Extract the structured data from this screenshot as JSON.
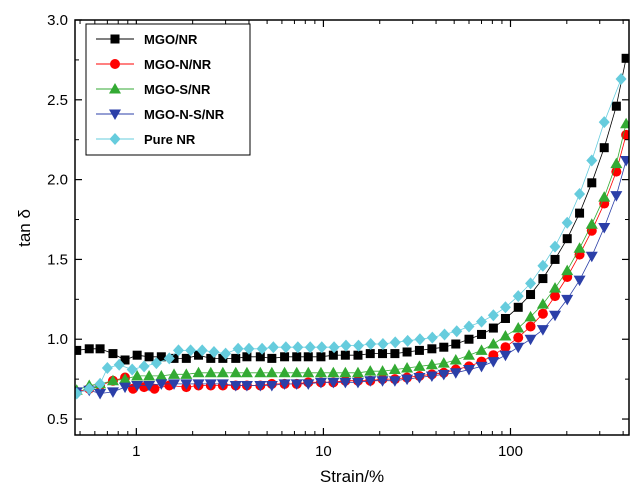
{
  "chart_data": {
    "type": "scatter",
    "xlabel": "Strain/%",
    "ylabel": "tan δ",
    "xscale": "log",
    "xlim": [
      0.47,
      430
    ],
    "ylim": [
      0.4,
      3.0
    ],
    "xticks": [
      1,
      10,
      100
    ],
    "yticks": [
      0.5,
      1.0,
      1.5,
      2.0,
      2.5,
      3.0
    ],
    "legend_position": "top-left",
    "grid": false,
    "series": [
      {
        "name": "MGO/NR",
        "color": "#000000",
        "marker": "square",
        "points": [
          [
            0.48,
            0.93
          ],
          [
            0.56,
            0.94
          ],
          [
            0.64,
            0.94
          ],
          [
            0.75,
            0.91
          ],
          [
            0.87,
            0.87
          ],
          [
            1.01,
            0.9
          ],
          [
            1.17,
            0.89
          ],
          [
            1.36,
            0.89
          ],
          [
            1.59,
            0.88
          ],
          [
            1.85,
            0.88
          ],
          [
            2.15,
            0.9
          ],
          [
            2.5,
            0.88
          ],
          [
            2.9,
            0.88
          ],
          [
            3.4,
            0.88
          ],
          [
            3.9,
            0.89
          ],
          [
            4.6,
            0.89
          ],
          [
            5.3,
            0.88
          ],
          [
            6.2,
            0.89
          ],
          [
            7.2,
            0.89
          ],
          [
            8.3,
            0.89
          ],
          [
            9.7,
            0.89
          ],
          [
            11.3,
            0.9
          ],
          [
            13.1,
            0.9
          ],
          [
            15.3,
            0.9
          ],
          [
            17.8,
            0.91
          ],
          [
            20.7,
            0.91
          ],
          [
            24.1,
            0.91
          ],
          [
            28,
            0.92
          ],
          [
            32.6,
            0.93
          ],
          [
            38,
            0.94
          ],
          [
            44,
            0.95
          ],
          [
            51,
            0.97
          ],
          [
            60,
            1.0
          ],
          [
            70,
            1.03
          ],
          [
            81,
            1.07
          ],
          [
            94,
            1.13
          ],
          [
            110,
            1.2
          ],
          [
            128,
            1.28
          ],
          [
            149,
            1.38
          ],
          [
            173,
            1.5
          ],
          [
            201,
            1.63
          ],
          [
            234,
            1.79
          ],
          [
            272,
            1.98
          ],
          [
            317,
            2.2
          ],
          [
            368,
            2.46
          ],
          [
            415,
            2.76
          ]
        ]
      },
      {
        "name": "MGO-N/NR",
        "color": "#ff0000",
        "marker": "circle",
        "points": [
          [
            0.48,
            0.67
          ],
          [
            0.56,
            0.69
          ],
          [
            0.64,
            0.71
          ],
          [
            0.75,
            0.74
          ],
          [
            0.87,
            0.76
          ],
          [
            0.96,
            0.69
          ],
          [
            1.1,
            0.7
          ],
          [
            1.25,
            0.69
          ],
          [
            1.5,
            0.71
          ],
          [
            1.85,
            0.7
          ],
          [
            2.15,
            0.71
          ],
          [
            2.5,
            0.71
          ],
          [
            2.9,
            0.71
          ],
          [
            3.4,
            0.71
          ],
          [
            3.9,
            0.71
          ],
          [
            4.6,
            0.71
          ],
          [
            5.3,
            0.72
          ],
          [
            6.2,
            0.72
          ],
          [
            7.2,
            0.72
          ],
          [
            8.3,
            0.73
          ],
          [
            9.7,
            0.73
          ],
          [
            11.3,
            0.73
          ],
          [
            13.1,
            0.74
          ],
          [
            15.3,
            0.74
          ],
          [
            17.8,
            0.74
          ],
          [
            20.7,
            0.75
          ],
          [
            24.1,
            0.75
          ],
          [
            28,
            0.76
          ],
          [
            32.6,
            0.77
          ],
          [
            38,
            0.78
          ],
          [
            44,
            0.79
          ],
          [
            51,
            0.81
          ],
          [
            60,
            0.83
          ],
          [
            70,
            0.86
          ],
          [
            81,
            0.9
          ],
          [
            94,
            0.95
          ],
          [
            110,
            1.01
          ],
          [
            128,
            1.08
          ],
          [
            149,
            1.16
          ],
          [
            173,
            1.27
          ],
          [
            201,
            1.39
          ],
          [
            234,
            1.53
          ],
          [
            272,
            1.68
          ],
          [
            317,
            1.85
          ],
          [
            368,
            2.05
          ],
          [
            415,
            2.28
          ]
        ]
      },
      {
        "name": "MGO-S/NR",
        "color": "#33aa33",
        "marker": "triangle-up",
        "points": [
          [
            0.48,
            0.68
          ],
          [
            0.56,
            0.71
          ],
          [
            0.64,
            0.72
          ],
          [
            0.75,
            0.74
          ],
          [
            0.87,
            0.75
          ],
          [
            1.01,
            0.77
          ],
          [
            1.17,
            0.77
          ],
          [
            1.36,
            0.77
          ],
          [
            1.59,
            0.78
          ],
          [
            1.85,
            0.78
          ],
          [
            2.15,
            0.79
          ],
          [
            2.5,
            0.79
          ],
          [
            2.9,
            0.79
          ],
          [
            3.4,
            0.79
          ],
          [
            3.9,
            0.79
          ],
          [
            4.6,
            0.79
          ],
          [
            5.3,
            0.79
          ],
          [
            6.2,
            0.79
          ],
          [
            7.2,
            0.79
          ],
          [
            8.3,
            0.79
          ],
          [
            9.7,
            0.79
          ],
          [
            11.3,
            0.79
          ],
          [
            13.1,
            0.79
          ],
          [
            15.3,
            0.79
          ],
          [
            17.8,
            0.8
          ],
          [
            20.7,
            0.8
          ],
          [
            24.1,
            0.81
          ],
          [
            28,
            0.82
          ],
          [
            32.6,
            0.83
          ],
          [
            38,
            0.84
          ],
          [
            44,
            0.85
          ],
          [
            51,
            0.87
          ],
          [
            60,
            0.9
          ],
          [
            70,
            0.93
          ],
          [
            81,
            0.97
          ],
          [
            94,
            1.02
          ],
          [
            110,
            1.07
          ],
          [
            128,
            1.14
          ],
          [
            149,
            1.22
          ],
          [
            173,
            1.32
          ],
          [
            201,
            1.43
          ],
          [
            234,
            1.57
          ],
          [
            272,
            1.72
          ],
          [
            317,
            1.89
          ],
          [
            368,
            2.1
          ],
          [
            415,
            2.35
          ]
        ]
      },
      {
        "name": "MGO-N-S/NR",
        "color": "#2b3fa8",
        "marker": "triangle-down",
        "points": [
          [
            0.48,
            0.67
          ],
          [
            0.56,
            0.68
          ],
          [
            0.64,
            0.66
          ],
          [
            0.75,
            0.67
          ],
          [
            0.87,
            0.7
          ],
          [
            1.01,
            0.71
          ],
          [
            1.17,
            0.71
          ],
          [
            1.36,
            0.72
          ],
          [
            1.59,
            0.72
          ],
          [
            1.85,
            0.72
          ],
          [
            2.15,
            0.72
          ],
          [
            2.5,
            0.72
          ],
          [
            2.9,
            0.72
          ],
          [
            3.4,
            0.71
          ],
          [
            3.9,
            0.71
          ],
          [
            4.6,
            0.71
          ],
          [
            5.3,
            0.71
          ],
          [
            6.2,
            0.72
          ],
          [
            7.2,
            0.72
          ],
          [
            8.3,
            0.72
          ],
          [
            9.7,
            0.73
          ],
          [
            11.3,
            0.73
          ],
          [
            13.1,
            0.73
          ],
          [
            15.3,
            0.73
          ],
          [
            17.8,
            0.74
          ],
          [
            20.7,
            0.74
          ],
          [
            24.1,
            0.74
          ],
          [
            28,
            0.75
          ],
          [
            32.6,
            0.76
          ],
          [
            38,
            0.77
          ],
          [
            44,
            0.78
          ],
          [
            51,
            0.79
          ],
          [
            60,
            0.81
          ],
          [
            70,
            0.83
          ],
          [
            81,
            0.86
          ],
          [
            94,
            0.9
          ],
          [
            110,
            0.95
          ],
          [
            128,
            1.0
          ],
          [
            149,
            1.06
          ],
          [
            173,
            1.15
          ],
          [
            201,
            1.25
          ],
          [
            234,
            1.37
          ],
          [
            272,
            1.52
          ],
          [
            317,
            1.7
          ],
          [
            368,
            1.9
          ],
          [
            415,
            2.12
          ]
        ]
      },
      {
        "name": "Pure NR",
        "color": "#66ccdd",
        "marker": "diamond",
        "points": [
          [
            0.48,
            0.66
          ],
          [
            0.56,
            0.69
          ],
          [
            0.64,
            0.72
          ],
          [
            0.7,
            0.82
          ],
          [
            0.81,
            0.84
          ],
          [
            0.95,
            0.81
          ],
          [
            1.1,
            0.83
          ],
          [
            1.28,
            0.85
          ],
          [
            1.5,
            0.88
          ],
          [
            1.68,
            0.93
          ],
          [
            1.95,
            0.93
          ],
          [
            2.25,
            0.93
          ],
          [
            2.6,
            0.92
          ],
          [
            3.0,
            0.91
          ],
          [
            3.5,
            0.94
          ],
          [
            4.0,
            0.94
          ],
          [
            4.7,
            0.94
          ],
          [
            5.4,
            0.95
          ],
          [
            6.3,
            0.95
          ],
          [
            7.3,
            0.95
          ],
          [
            8.5,
            0.95
          ],
          [
            9.8,
            0.95
          ],
          [
            11.4,
            0.95
          ],
          [
            13.2,
            0.96
          ],
          [
            15.4,
            0.96
          ],
          [
            17.9,
            0.97
          ],
          [
            20.8,
            0.97
          ],
          [
            24.2,
            0.98
          ],
          [
            28.2,
            0.99
          ],
          [
            32.8,
            1.0
          ],
          [
            38.2,
            1.01
          ],
          [
            44.4,
            1.03
          ],
          [
            51.6,
            1.05
          ],
          [
            60,
            1.08
          ],
          [
            70,
            1.11
          ],
          [
            81,
            1.15
          ],
          [
            94,
            1.2
          ],
          [
            110,
            1.27
          ],
          [
            128,
            1.35
          ],
          [
            149,
            1.46
          ],
          [
            173,
            1.58
          ],
          [
            201,
            1.73
          ],
          [
            234,
            1.91
          ],
          [
            272,
            2.12
          ],
          [
            317,
            2.36
          ],
          [
            390,
            2.63
          ]
        ]
      }
    ]
  }
}
